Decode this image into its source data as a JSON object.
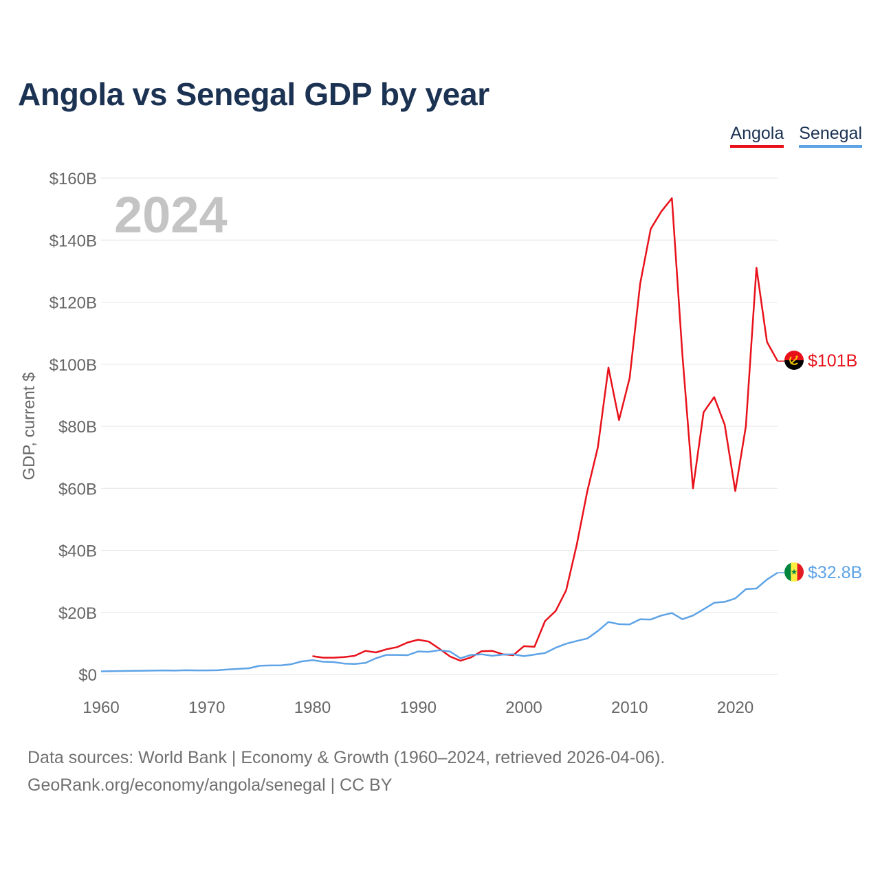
{
  "title": "Angola vs Senegal GDP by year",
  "legend": {
    "angola": "Angola",
    "senegal": "Senegal"
  },
  "year_watermark": "2024",
  "source": {
    "line1": "Data sources: World Bank | Economy & Growth (1960–2024, retrieved 2026-04-06).",
    "line2": "GeoRank.org/economy/angola/senegal | CC BY"
  },
  "colors": {
    "angola": "#e8111a",
    "senegal": "#5ea3e6",
    "title": "#1b3252",
    "grid": "#e6e6e6",
    "axis_text": "#666666"
  },
  "chart_data": {
    "type": "line",
    "title": "Angola vs Senegal GDP by year",
    "xlabel": "",
    "ylabel": "GDP, current $",
    "xlim": [
      1960,
      2024
    ],
    "ylim": [
      0,
      160
    ],
    "units": "billion USD",
    "y_ticks": [
      0,
      20,
      40,
      60,
      80,
      100,
      120,
      140,
      160
    ],
    "y_tick_labels": [
      "$0",
      "$20B",
      "$40B",
      "$60B",
      "$80B",
      "$100B",
      "$120B",
      "$140B",
      "$160B"
    ],
    "x_ticks": [
      1960,
      1970,
      1980,
      1990,
      2000,
      2010,
      2020
    ],
    "x_tick_labels": [
      "1960",
      "1970",
      "1980",
      "1990",
      "2000",
      "2010",
      "2020"
    ],
    "grid": true,
    "legend_position": "top-right",
    "series": [
      {
        "name": "Angola",
        "end_label": "$101B",
        "x": [
          1980,
          1981,
          1982,
          1983,
          1984,
          1985,
          1986,
          1987,
          1988,
          1989,
          1990,
          1991,
          1992,
          1993,
          1994,
          1995,
          1996,
          1997,
          1998,
          1999,
          2000,
          2001,
          2002,
          2003,
          2004,
          2005,
          2006,
          2007,
          2008,
          2009,
          2010,
          2011,
          2012,
          2013,
          2014,
          2015,
          2016,
          2017,
          2018,
          2019,
          2020,
          2021,
          2022,
          2023,
          2024
        ],
        "values": [
          5.9,
          5.4,
          5.4,
          5.6,
          6.0,
          7.6,
          7.1,
          8.1,
          8.8,
          10.3,
          11.2,
          10.6,
          8.3,
          5.8,
          4.4,
          5.5,
          7.5,
          7.6,
          6.5,
          6.2,
          9.1,
          8.9,
          17.2,
          20.4,
          27.1,
          41.8,
          59.1,
          73.2,
          98.9,
          82.0,
          95.5,
          125.9,
          143.6,
          149.2,
          153.5,
          103.0,
          60.0,
          84.5,
          89.4,
          80.5,
          59.1,
          80.0,
          131.1,
          107.2,
          101.0
        ]
      },
      {
        "name": "Senegal",
        "end_label": "$32.8B",
        "x": [
          1960,
          1961,
          1962,
          1963,
          1964,
          1965,
          1966,
          1967,
          1968,
          1969,
          1970,
          1971,
          1972,
          1973,
          1974,
          1975,
          1976,
          1977,
          1978,
          1979,
          1980,
          1981,
          1982,
          1983,
          1984,
          1985,
          1986,
          1987,
          1988,
          1989,
          1990,
          1991,
          1992,
          1993,
          1994,
          1995,
          1996,
          1997,
          1998,
          1999,
          2000,
          2001,
          2002,
          2003,
          2004,
          2005,
          2006,
          2007,
          2008,
          2009,
          2010,
          2011,
          2012,
          2013,
          2014,
          2015,
          2016,
          2017,
          2018,
          2019,
          2020,
          2021,
          2022,
          2023,
          2024
        ],
        "values": [
          1.0,
          1.05,
          1.1,
          1.15,
          1.2,
          1.25,
          1.3,
          1.25,
          1.35,
          1.3,
          1.3,
          1.35,
          1.6,
          1.8,
          2.0,
          2.8,
          2.9,
          2.9,
          3.3,
          4.2,
          4.6,
          4.1,
          4.0,
          3.5,
          3.4,
          3.7,
          5.2,
          6.3,
          6.3,
          6.2,
          7.4,
          7.3,
          7.8,
          7.4,
          5.2,
          6.3,
          6.5,
          6.0,
          6.4,
          6.5,
          5.9,
          6.4,
          6.9,
          8.6,
          9.9,
          10.8,
          11.6,
          14.0,
          16.9,
          16.2,
          16.1,
          17.8,
          17.7,
          19.0,
          19.8,
          17.8,
          19.0,
          21.0,
          23.1,
          23.4,
          24.5,
          27.5,
          27.7,
          30.6,
          32.8
        ]
      }
    ]
  }
}
